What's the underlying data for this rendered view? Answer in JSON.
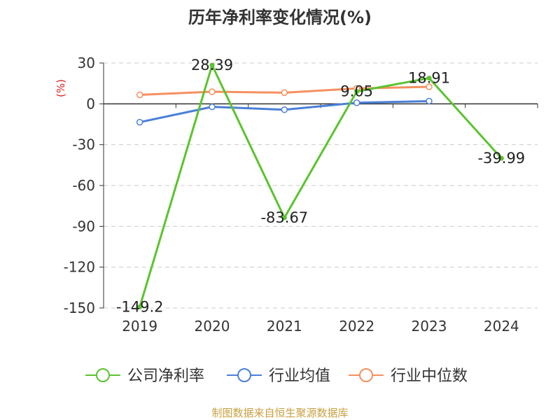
{
  "chart_data": {
    "type": "line",
    "title": "历年净利率变化情况(%)",
    "ylabel": "(%)",
    "categories": [
      "2019",
      "2020",
      "2021",
      "2022",
      "2023",
      "2024"
    ],
    "ylim": [
      -150,
      30
    ],
    "yticks": [
      30,
      0,
      -30,
      -60,
      -90,
      -120,
      -150
    ],
    "grid": true,
    "legend_position": "bottom",
    "series": [
      {
        "name": "公司净利率",
        "color": "#5bc32e",
        "values": [
          -149.2,
          28.39,
          -83.67,
          9.05,
          18.91,
          -39.99
        ],
        "labels": [
          "-149.2",
          "28.39",
          "-83.67",
          "9.05",
          "18.91",
          "-39.99"
        ]
      },
      {
        "name": "行业均值",
        "color": "#4b7fd8",
        "values": [
          -13.5,
          -2.2,
          -4.3,
          0.8,
          2.0,
          null
        ]
      },
      {
        "name": "行业中位数",
        "color": "#f5905e",
        "values": [
          6.6,
          8.9,
          8.2,
          11.3,
          12.5,
          null
        ]
      }
    ]
  },
  "footer": {
    "source": "制图数据来自恒生聚源数据库"
  }
}
